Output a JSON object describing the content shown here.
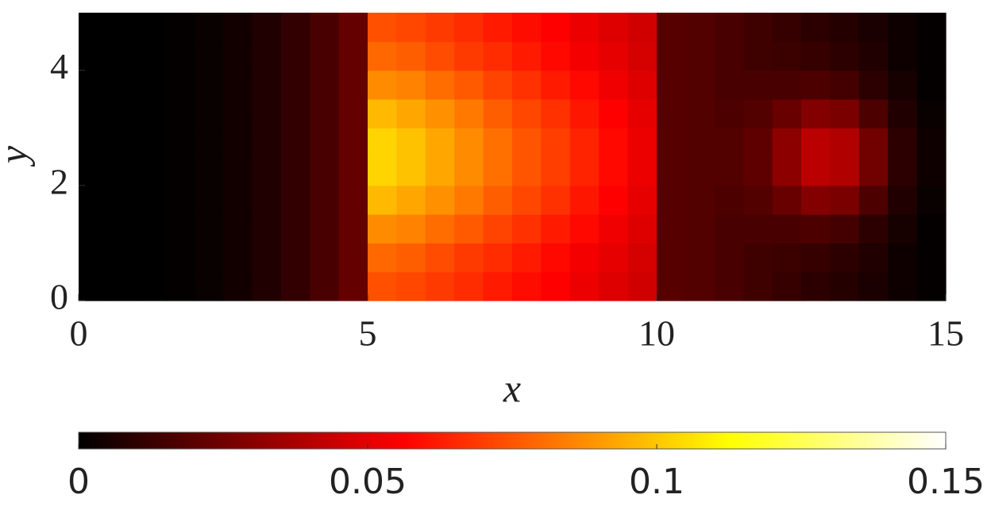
{
  "chart_data": {
    "type": "heatmap",
    "xlabel": "x",
    "ylabel": "y",
    "xlim": [
      0,
      15
    ],
    "ylim": [
      0,
      5
    ],
    "xticks": [
      0,
      5,
      10,
      15
    ],
    "yticks": [
      0,
      2,
      4
    ],
    "colormap": "hot",
    "colorbar": {
      "lim": [
        0,
        0.15
      ],
      "ticks": [
        0,
        0.05,
        0.1,
        0.15
      ]
    },
    "x": [
      0.25,
      0.75,
      1.25,
      1.75,
      2.25,
      2.75,
      3.25,
      3.75,
      4.25,
      4.75,
      5.25,
      5.75,
      6.25,
      6.75,
      7.25,
      7.75,
      8.25,
      8.75,
      9.25,
      9.75,
      10.25,
      10.75,
      11.25,
      11.75,
      12.25,
      12.75,
      13.25,
      13.75,
      14.25,
      14.75
    ],
    "y": [
      0.25,
      0.75,
      1.25,
      1.75,
      2.25,
      2.75,
      3.25,
      3.75,
      4.25,
      4.75
    ],
    "values": [
      [
        0,
        0,
        0,
        0.001,
        0.002,
        0.004,
        0.007,
        0.011,
        0.016,
        0.022,
        0.074,
        0.072,
        0.069,
        0.066,
        0.062,
        0.059,
        0.056,
        0.052,
        0.049,
        0.046,
        0.019,
        0.018,
        0.016,
        0.014,
        0.012,
        0.01,
        0.008,
        0.006,
        0.003,
        0.001
      ],
      [
        0,
        0,
        0,
        0.001,
        0.002,
        0.004,
        0.007,
        0.011,
        0.016,
        0.022,
        0.079,
        0.077,
        0.073,
        0.069,
        0.066,
        0.062,
        0.058,
        0.054,
        0.051,
        0.047,
        0.019,
        0.018,
        0.016,
        0.014,
        0.013,
        0.012,
        0.01,
        0.007,
        0.003,
        0.001
      ],
      [
        0,
        0,
        0,
        0.001,
        0.002,
        0.004,
        0.007,
        0.011,
        0.016,
        0.022,
        0.087,
        0.085,
        0.08,
        0.076,
        0.071,
        0.067,
        0.062,
        0.058,
        0.053,
        0.049,
        0.019,
        0.018,
        0.016,
        0.016,
        0.016,
        0.017,
        0.015,
        0.01,
        0.005,
        0.001
      ],
      [
        0,
        0,
        0,
        0.001,
        0.002,
        0.004,
        0.007,
        0.011,
        0.016,
        0.022,
        0.097,
        0.093,
        0.088,
        0.083,
        0.077,
        0.072,
        0.067,
        0.061,
        0.056,
        0.051,
        0.019,
        0.018,
        0.017,
        0.018,
        0.023,
        0.029,
        0.027,
        0.017,
        0.007,
        0.002
      ],
      [
        0,
        0,
        0,
        0.001,
        0.002,
        0.004,
        0.007,
        0.011,
        0.016,
        0.022,
        0.103,
        0.099,
        0.093,
        0.087,
        0.081,
        0.075,
        0.07,
        0.064,
        0.058,
        0.052,
        0.019,
        0.018,
        0.018,
        0.021,
        0.031,
        0.041,
        0.039,
        0.025,
        0.01,
        0.003
      ],
      [
        0,
        0,
        0,
        0.001,
        0.002,
        0.004,
        0.007,
        0.011,
        0.016,
        0.022,
        0.103,
        0.099,
        0.093,
        0.087,
        0.081,
        0.075,
        0.07,
        0.064,
        0.058,
        0.052,
        0.019,
        0.018,
        0.018,
        0.021,
        0.031,
        0.041,
        0.039,
        0.025,
        0.01,
        0.003
      ],
      [
        0,
        0,
        0,
        0.001,
        0.002,
        0.004,
        0.007,
        0.011,
        0.016,
        0.022,
        0.097,
        0.093,
        0.088,
        0.083,
        0.077,
        0.072,
        0.067,
        0.061,
        0.056,
        0.051,
        0.019,
        0.018,
        0.017,
        0.018,
        0.023,
        0.029,
        0.027,
        0.017,
        0.007,
        0.002
      ],
      [
        0,
        0,
        0,
        0.001,
        0.002,
        0.004,
        0.007,
        0.011,
        0.016,
        0.022,
        0.087,
        0.085,
        0.08,
        0.076,
        0.071,
        0.067,
        0.062,
        0.058,
        0.053,
        0.049,
        0.019,
        0.018,
        0.016,
        0.016,
        0.016,
        0.017,
        0.015,
        0.01,
        0.005,
        0.001
      ],
      [
        0,
        0,
        0,
        0.001,
        0.002,
        0.004,
        0.007,
        0.011,
        0.016,
        0.022,
        0.079,
        0.077,
        0.073,
        0.069,
        0.066,
        0.062,
        0.058,
        0.054,
        0.051,
        0.047,
        0.019,
        0.018,
        0.016,
        0.014,
        0.013,
        0.012,
        0.01,
        0.007,
        0.003,
        0.001
      ],
      [
        0,
        0,
        0,
        0.001,
        0.002,
        0.004,
        0.007,
        0.011,
        0.016,
        0.022,
        0.074,
        0.072,
        0.069,
        0.066,
        0.062,
        0.059,
        0.056,
        0.052,
        0.049,
        0.046,
        0.019,
        0.018,
        0.016,
        0.014,
        0.012,
        0.01,
        0.008,
        0.006,
        0.003,
        0.001
      ]
    ]
  }
}
